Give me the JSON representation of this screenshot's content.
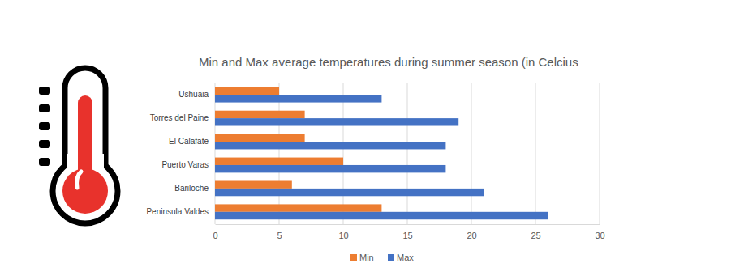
{
  "chart_data": {
    "type": "bar",
    "orientation": "horizontal",
    "title": "Min and Max average temperatures during summer season (in Celcius",
    "categories": [
      "Ushuaia",
      "Torres del Paine",
      "El Calafate",
      "Puerto Varas",
      "Bariloche",
      "Peninsula Valdes"
    ],
    "series": [
      {
        "name": "Min",
        "color": "#ed7d31",
        "values": [
          5,
          7,
          7,
          10,
          6,
          13
        ]
      },
      {
        "name": "Max",
        "color": "#4472c4",
        "values": [
          13,
          19,
          18,
          18,
          21,
          26
        ]
      }
    ],
    "xlim": [
      0,
      30
    ],
    "xticks": [
      0,
      5,
      10,
      15,
      20,
      25,
      30
    ],
    "grid": true,
    "legend": "bottom"
  }
}
